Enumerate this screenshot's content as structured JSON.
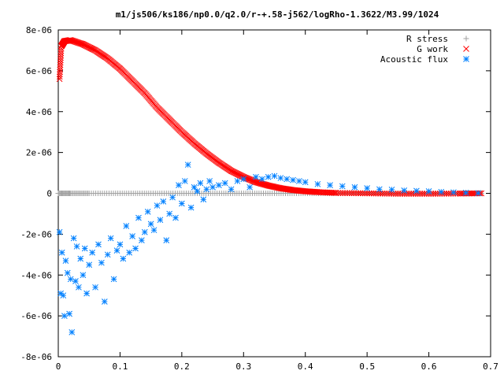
{
  "chart_data": {
    "type": "scatter",
    "title": "m1/js506/ks186/np0.0/q2.0/r-+.58-j562/logRho-1.3622/M3.99/1024",
    "xlabel": "",
    "ylabel": "",
    "xlim": [
      0,
      0.7
    ],
    "ylim": [
      -8e-06,
      8e-06
    ],
    "x_ticks": [
      "0",
      "0.1",
      "0.2",
      "0.3",
      "0.4",
      "0.5",
      "0.6",
      "0.7"
    ],
    "y_ticks": [
      "-8e-06",
      "-6e-06",
      "-4e-06",
      "-2e-06",
      "0",
      "2e-06",
      "4e-06",
      "6e-06",
      "8e-06"
    ],
    "grid": false,
    "legend_position": "top-right",
    "series": [
      {
        "name": "R stress",
        "marker": "plus",
        "color": "#a0a0a0",
        "x": [
          0.0,
          0.02,
          0.05,
          0.1,
          0.15,
          0.2,
          0.25,
          0.3,
          0.35,
          0.4,
          0.45,
          0.5,
          0.55,
          0.6,
          0.65,
          0.685
        ],
        "y": [
          0,
          0,
          0,
          0,
          0,
          0,
          0,
          0,
          0,
          0,
          0,
          0,
          0,
          0,
          0,
          0
        ]
      },
      {
        "name": "G work",
        "marker": "cross",
        "color": "#ff0000",
        "x": [
          0.002,
          0.005,
          0.01,
          0.02,
          0.04,
          0.06,
          0.08,
          0.1,
          0.12,
          0.14,
          0.16,
          0.18,
          0.2,
          0.22,
          0.24,
          0.26,
          0.28,
          0.3,
          0.32,
          0.34,
          0.36,
          0.38,
          0.4,
          0.42,
          0.45,
          0.5,
          0.55,
          0.6,
          0.65,
          0.685
        ],
        "y": [
          5.6e-06,
          7.2e-06,
          7.45e-06,
          7.5e-06,
          7.3e-06,
          7e-06,
          6.6e-06,
          6.1e-06,
          5.5e-06,
          4.9e-06,
          4.2e-06,
          3.6e-06,
          3e-06,
          2.45e-06,
          1.95e-06,
          1.5e-06,
          1.1e-06,
          8e-07,
          5.5e-07,
          3.8e-07,
          2.5e-07,
          1.6e-07,
          1e-07,
          6e-08,
          2e-08,
          0.0,
          -2e-08,
          -2e-08,
          -1e-08,
          0.0
        ]
      },
      {
        "name": "Acoustic flux",
        "marker": "star",
        "color": "#0080ff",
        "x": [
          0.002,
          0.004,
          0.006,
          0.008,
          0.01,
          0.012,
          0.015,
          0.018,
          0.02,
          0.022,
          0.025,
          0.028,
          0.03,
          0.033,
          0.036,
          0.04,
          0.043,
          0.046,
          0.05,
          0.055,
          0.06,
          0.065,
          0.07,
          0.075,
          0.08,
          0.085,
          0.09,
          0.095,
          0.1,
          0.105,
          0.11,
          0.115,
          0.12,
          0.125,
          0.13,
          0.135,
          0.14,
          0.145,
          0.15,
          0.155,
          0.16,
          0.165,
          0.17,
          0.175,
          0.18,
          0.185,
          0.19,
          0.195,
          0.2,
          0.205,
          0.21,
          0.215,
          0.22,
          0.225,
          0.23,
          0.235,
          0.24,
          0.245,
          0.25,
          0.26,
          0.27,
          0.28,
          0.29,
          0.3,
          0.31,
          0.32,
          0.33,
          0.34,
          0.35,
          0.36,
          0.37,
          0.38,
          0.39,
          0.4,
          0.42,
          0.44,
          0.46,
          0.48,
          0.5,
          0.52,
          0.54,
          0.56,
          0.58,
          0.6,
          0.62,
          0.64,
          0.66,
          0.68
        ],
        "y": [
          -1.9e-06,
          -4.9e-06,
          -2.9e-06,
          -5e-06,
          -6e-06,
          -3.3e-06,
          -3.9e-06,
          -5.9e-06,
          -4.2e-06,
          -6.8e-06,
          -2.2e-06,
          -4.3e-06,
          -2.6e-06,
          -4.6e-06,
          -3.2e-06,
          -4e-06,
          -2.7e-06,
          -4.9e-06,
          -3.5e-06,
          -2.9e-06,
          -4.6e-06,
          -2.5e-06,
          -3.4e-06,
          -5.3e-06,
          -3e-06,
          -2.2e-06,
          -4.2e-06,
          -2.8e-06,
          -2.5e-06,
          -3.2e-06,
          -1.6e-06,
          -2.9e-06,
          -2.1e-06,
          -2.7e-06,
          -1.2e-06,
          -2.3e-06,
          -1.9e-06,
          -9e-07,
          -1.5e-06,
          -1.8e-06,
          -6e-07,
          -1.3e-06,
          -4e-07,
          -2.3e-06,
          -1e-06,
          -2e-07,
          -1.2e-06,
          4e-07,
          -5e-07,
          6e-07,
          1.4e-06,
          -7e-07,
          3e-07,
          1e-07,
          5e-07,
          -3e-07,
          2e-07,
          6e-07,
          3e-07,
          4e-07,
          5e-07,
          2e-07,
          6e-07,
          7e-07,
          3e-07,
          8e-07,
          7e-07,
          8e-07,
          8.5e-07,
          7.5e-07,
          7e-07,
          6.5e-07,
          6e-07,
          5.5e-07,
          4.5e-07,
          4e-07,
          3.5e-07,
          3e-07,
          2.5e-07,
          2e-07,
          1.8e-07,
          1.4e-07,
          1.2e-07,
          1e-07,
          7e-08,
          5e-08,
          3e-08,
          1e-08
        ]
      }
    ]
  }
}
